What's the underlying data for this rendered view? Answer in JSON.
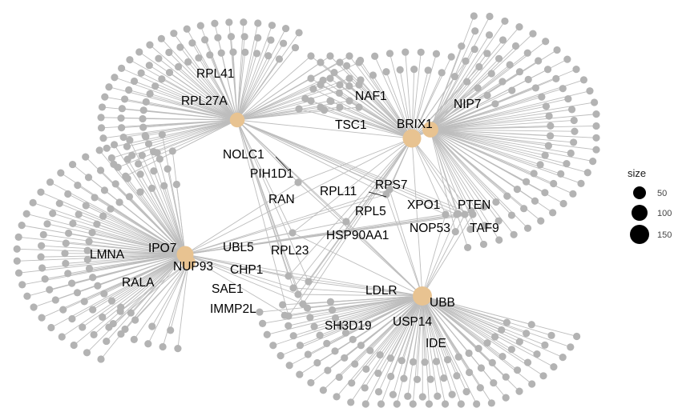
{
  "colors": {
    "edge": "#bdbdbd",
    "leaf": "#b3b3b3",
    "hub": "#e8c391",
    "text": "#000000",
    "legend_dot": "#000000"
  },
  "hubs": [
    {
      "id": "RPL27A",
      "size": 60
    },
    {
      "id": "BRIX1",
      "size": 140
    },
    {
      "id": "NIP7",
      "size": 80
    },
    {
      "id": "IPO7",
      "size": 100
    },
    {
      "id": "NUP93",
      "size": 50
    },
    {
      "id": "UBB",
      "size": 160
    }
  ],
  "labels": [
    "RPL41",
    "RPL27A",
    "NAF1",
    "NIP7",
    "TSC1",
    "BRIX1",
    "NOLC1",
    "PIH1D1",
    "RPS7",
    "RPL11",
    "RAN",
    "XPO1",
    "PTEN",
    "RPL5",
    "NOP53",
    "TAF9",
    "HSP90AA1",
    "UBL5",
    "RPL23",
    "LMNA",
    "IPO7",
    "NUP93",
    "CHP1",
    "RALA",
    "SAE1",
    "LDLR",
    "UBB",
    "IMMP2L",
    "SH3D19",
    "USP14",
    "IDE"
  ],
  "legend": {
    "title": "size",
    "items": [
      {
        "label": "50"
      },
      {
        "label": "100"
      },
      {
        "label": "150"
      }
    ]
  }
}
